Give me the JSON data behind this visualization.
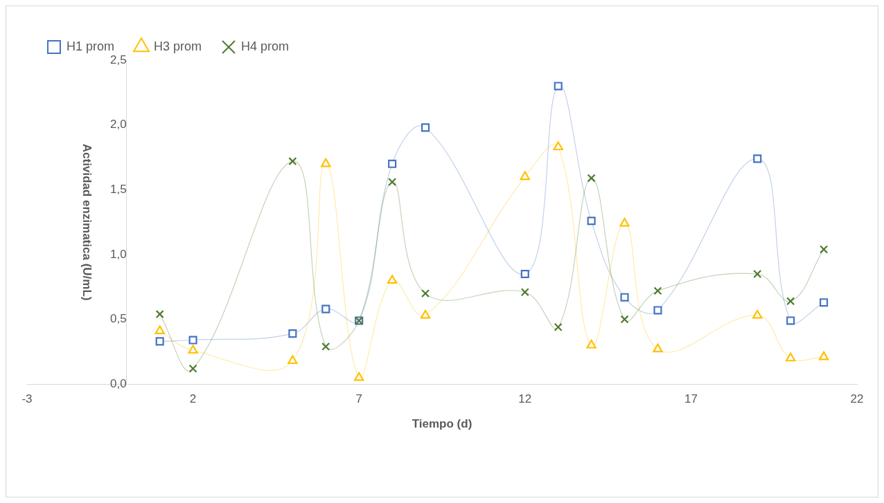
{
  "chart_data": {
    "type": "line",
    "xlabel": "Tiempo (d)",
    "ylabel": "Actividad enzimatica (U/mL)",
    "xlim": [
      -3,
      22
    ],
    "xticks": [
      -3,
      2,
      7,
      12,
      17,
      22
    ],
    "ylim": [
      0,
      2.5
    ],
    "yticks": [
      {
        "value": 0,
        "label": "0,0"
      },
      {
        "value": 0.5,
        "label": "0,5"
      },
      {
        "value": 1,
        "label": "1,0"
      },
      {
        "value": 1.5,
        "label": "1,5"
      },
      {
        "value": 2,
        "label": "2,0"
      },
      {
        "value": 2.5,
        "label": "2,5"
      }
    ],
    "grid": false,
    "legend": "top",
    "x": [
      1,
      2,
      5,
      6,
      7,
      8,
      9,
      12,
      13,
      14,
      15,
      16,
      19,
      20,
      21
    ],
    "series": [
      {
        "name": "H1 prom",
        "color": "#4472c4",
        "marker": "square",
        "values": [
          0.33,
          0.34,
          0.39,
          0.58,
          0.49,
          1.7,
          1.98,
          0.85,
          2.3,
          1.26,
          0.67,
          0.57,
          1.74,
          0.49,
          0.63
        ]
      },
      {
        "name": "H3 prom",
        "color": "#ffc000",
        "marker": "triangle",
        "values": [
          0.41,
          0.26,
          0.18,
          1.7,
          0.05,
          0.8,
          0.53,
          1.6,
          1.83,
          0.3,
          1.24,
          0.27,
          0.53,
          0.2,
          0.21
        ]
      },
      {
        "name": "H4 prom",
        "color": "#4e7a2e",
        "marker": "cross",
        "values": [
          0.54,
          0.12,
          1.72,
          0.29,
          0.49,
          1.56,
          0.7,
          0.71,
          0.44,
          1.59,
          0.5,
          0.72,
          0.85,
          0.64,
          1.04
        ]
      }
    ]
  }
}
